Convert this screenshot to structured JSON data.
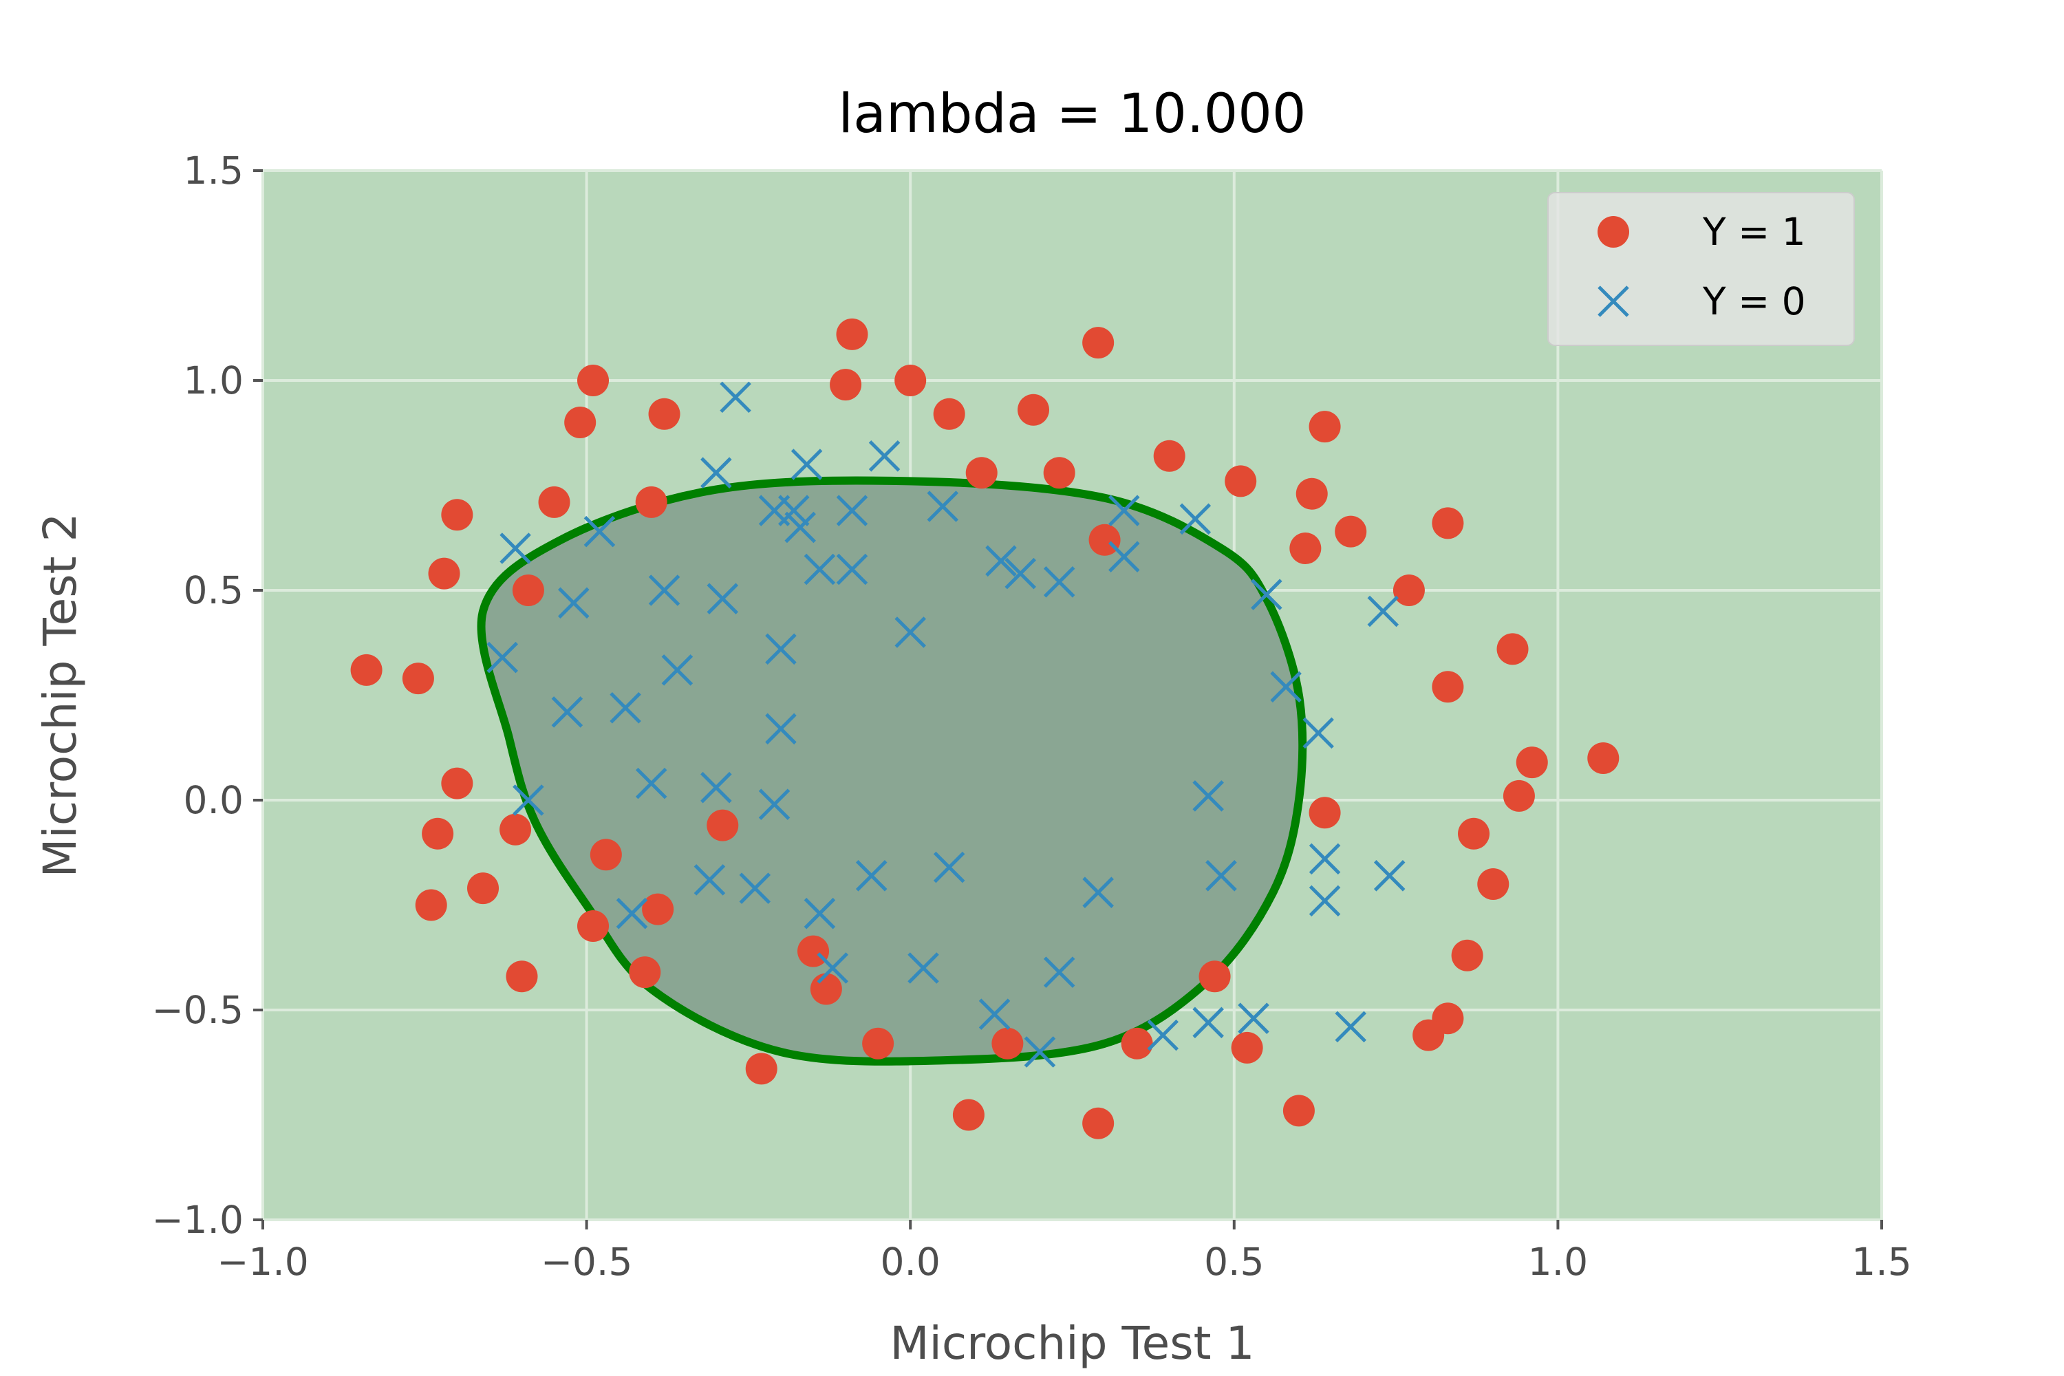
{
  "chart_data": {
    "type": "scatter",
    "title": "lambda = 10.000",
    "xlabel": "Microchip Test 1",
    "ylabel": "Microchip Test 2",
    "xlim": [
      -1.0,
      1.5
    ],
    "ylim": [
      -1.0,
      1.5
    ],
    "xticks": [
      -1.0,
      -0.5,
      0.0,
      0.5,
      1.0,
      1.5
    ],
    "yticks": [
      -1.0,
      -0.5,
      0.0,
      0.5,
      1.0,
      1.5
    ],
    "xtick_labels": [
      "−1.0",
      "−0.5",
      "0.0",
      "0.5",
      "1.0",
      "1.5"
    ],
    "ytick_labels": [
      "−1.0",
      "−0.5",
      "0.0",
      "0.5",
      "1.0",
      "1.5"
    ],
    "grid": true,
    "legend_position": "top-right",
    "colors": {
      "background": "#b9d8bb",
      "region_fill": "#8aa693",
      "boundary": "#008000",
      "y1": "#e24a33",
      "y0": "#348abd",
      "grid": "#dcebdc"
    },
    "series": [
      {
        "name": "Y = 1",
        "marker": "circle",
        "points": [
          [
            -0.09,
            1.11
          ],
          [
            0.29,
            1.09
          ],
          [
            -0.49,
            1.0
          ],
          [
            -0.1,
            0.99
          ],
          [
            -0.0,
            1.0
          ],
          [
            -0.51,
            0.9
          ],
          [
            -0.38,
            0.92
          ],
          [
            0.06,
            0.92
          ],
          [
            0.19,
            0.93
          ],
          [
            0.64,
            0.89
          ],
          [
            0.4,
            0.82
          ],
          [
            0.11,
            0.78
          ],
          [
            0.23,
            0.78
          ],
          [
            0.51,
            0.76
          ],
          [
            0.62,
            0.73
          ],
          [
            -0.55,
            0.71
          ],
          [
            -0.4,
            0.71
          ],
          [
            -0.7,
            0.68
          ],
          [
            0.83,
            0.66
          ],
          [
            0.68,
            0.64
          ],
          [
            0.3,
            0.62
          ],
          [
            0.61,
            0.6
          ],
          [
            -0.72,
            0.54
          ],
          [
            0.77,
            0.5
          ],
          [
            -0.59,
            0.5
          ],
          [
            0.93,
            0.36
          ],
          [
            -0.84,
            0.31
          ],
          [
            -0.76,
            0.29
          ],
          [
            0.83,
            0.27
          ],
          [
            1.07,
            0.1
          ],
          [
            0.96,
            0.09
          ],
          [
            -0.7,
            0.04
          ],
          [
            0.94,
            0.01
          ],
          [
            0.64,
            -0.03
          ],
          [
            -0.29,
            -0.06
          ],
          [
            -0.61,
            -0.07
          ],
          [
            -0.73,
            -0.08
          ],
          [
            0.87,
            -0.08
          ],
          [
            -0.47,
            -0.13
          ],
          [
            0.9,
            -0.2
          ],
          [
            -0.66,
            -0.21
          ],
          [
            -0.74,
            -0.25
          ],
          [
            -0.39,
            -0.26
          ],
          [
            -0.49,
            -0.3
          ],
          [
            0.86,
            -0.37
          ],
          [
            -0.15,
            -0.36
          ],
          [
            -0.41,
            -0.41
          ],
          [
            -0.6,
            -0.42
          ],
          [
            0.47,
            -0.42
          ],
          [
            -0.13,
            -0.45
          ],
          [
            0.83,
            -0.52
          ],
          [
            0.8,
            -0.56
          ],
          [
            0.35,
            -0.58
          ],
          [
            -0.05,
            -0.58
          ],
          [
            0.15,
            -0.58
          ],
          [
            0.52,
            -0.59
          ],
          [
            -0.23,
            -0.64
          ],
          [
            0.6,
            -0.74
          ],
          [
            0.09,
            -0.75
          ],
          [
            0.29,
            -0.77
          ]
        ]
      },
      {
        "name": "Y = 0",
        "marker": "x",
        "points": [
          [
            -0.27,
            0.96
          ],
          [
            -0.04,
            0.82
          ],
          [
            -0.16,
            0.8
          ],
          [
            -0.3,
            0.78
          ],
          [
            0.33,
            0.69
          ],
          [
            0.44,
            0.67
          ],
          [
            -0.21,
            0.69
          ],
          [
            -0.18,
            0.69
          ],
          [
            0.05,
            0.7
          ],
          [
            -0.09,
            0.69
          ],
          [
            -0.17,
            0.65
          ],
          [
            -0.48,
            0.64
          ],
          [
            -0.61,
            0.6
          ],
          [
            0.14,
            0.57
          ],
          [
            0.33,
            0.58
          ],
          [
            -0.14,
            0.55
          ],
          [
            -0.09,
            0.55
          ],
          [
            0.17,
            0.54
          ],
          [
            0.23,
            0.52
          ],
          [
            -0.38,
            0.5
          ],
          [
            0.55,
            0.49
          ],
          [
            -0.29,
            0.48
          ],
          [
            -0.52,
            0.47
          ],
          [
            0.73,
            0.45
          ],
          [
            -0.0,
            0.4
          ],
          [
            -0.2,
            0.36
          ],
          [
            -0.63,
            0.34
          ],
          [
            -0.36,
            0.31
          ],
          [
            0.58,
            0.27
          ],
          [
            -0.53,
            0.21
          ],
          [
            -0.44,
            0.22
          ],
          [
            -0.2,
            0.17
          ],
          [
            0.63,
            0.16
          ],
          [
            -0.4,
            0.04
          ],
          [
            -0.3,
            0.03
          ],
          [
            -0.59,
            0.0
          ],
          [
            0.46,
            0.01
          ],
          [
            -0.21,
            -0.01
          ],
          [
            0.64,
            -0.14
          ],
          [
            -0.06,
            -0.18
          ],
          [
            0.06,
            -0.16
          ],
          [
            0.48,
            -0.18
          ],
          [
            0.74,
            -0.18
          ],
          [
            -0.31,
            -0.19
          ],
          [
            -0.24,
            -0.21
          ],
          [
            0.29,
            -0.22
          ],
          [
            0.64,
            -0.24
          ],
          [
            -0.14,
            -0.27
          ],
          [
            -0.43,
            -0.27
          ],
          [
            -0.12,
            -0.4
          ],
          [
            0.02,
            -0.4
          ],
          [
            0.23,
            -0.41
          ],
          [
            0.13,
            -0.51
          ],
          [
            0.53,
            -0.52
          ],
          [
            0.46,
            -0.53
          ],
          [
            0.68,
            -0.54
          ],
          [
            0.39,
            -0.56
          ],
          [
            0.2,
            -0.6
          ]
        ]
      }
    ],
    "decision_boundary": {
      "fill": "inside",
      "points": [
        [
          -0.58,
          -0.05
        ],
        [
          -0.62,
          0.15
        ],
        [
          -0.66,
          0.45
        ],
        [
          -0.54,
          0.62
        ],
        [
          -0.3,
          0.74
        ],
        [
          0.0,
          0.76
        ],
        [
          0.3,
          0.72
        ],
        [
          0.48,
          0.6
        ],
        [
          0.55,
          0.48
        ],
        [
          0.6,
          0.25
        ],
        [
          0.6,
          0.0
        ],
        [
          0.56,
          -0.22
        ],
        [
          0.46,
          -0.43
        ],
        [
          0.3,
          -0.58
        ],
        [
          0.05,
          -0.62
        ],
        [
          -0.2,
          -0.6
        ],
        [
          -0.4,
          -0.45
        ],
        [
          -0.5,
          -0.25
        ]
      ]
    }
  }
}
